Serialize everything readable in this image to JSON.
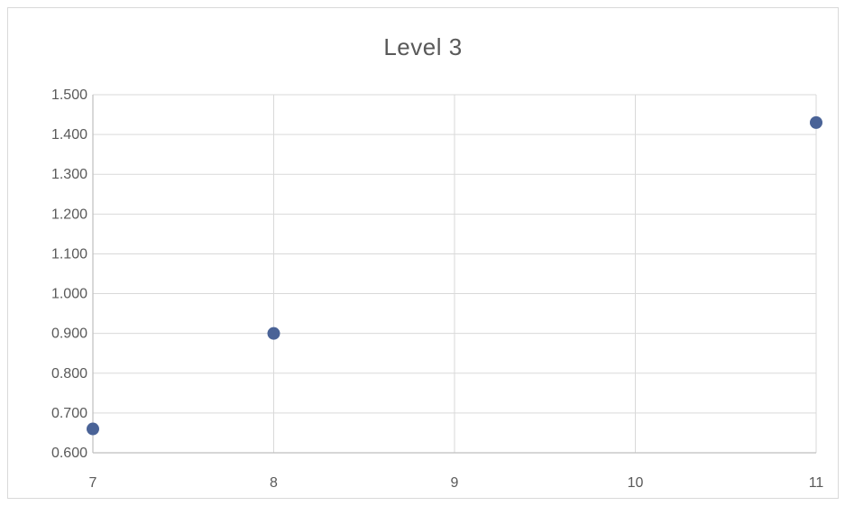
{
  "chart_data": {
    "type": "scatter",
    "title": "Level 3",
    "xlabel": "",
    "ylabel": "",
    "xlim": [
      7,
      11
    ],
    "ylim": [
      0.6,
      1.5
    ],
    "x_ticks": [
      7,
      8,
      9,
      10,
      11
    ],
    "x_tick_labels": [
      "7",
      "8",
      "9",
      "10",
      "11"
    ],
    "y_ticks": [
      0.6,
      0.7,
      0.8,
      0.9,
      1.0,
      1.1,
      1.2,
      1.3,
      1.4,
      1.5
    ],
    "y_tick_labels": [
      "0.600",
      "0.700",
      "0.800",
      "0.900",
      "1.000",
      "1.100",
      "1.200",
      "1.300",
      "1.400",
      "1.500"
    ],
    "grid": true,
    "legend": "none",
    "series": [
      {
        "points": [
          {
            "x": 7,
            "y": 0.66
          },
          {
            "x": 8,
            "y": 0.9
          },
          {
            "x": 11,
            "y": 1.43
          }
        ],
        "color": "#4a6397"
      }
    ]
  }
}
